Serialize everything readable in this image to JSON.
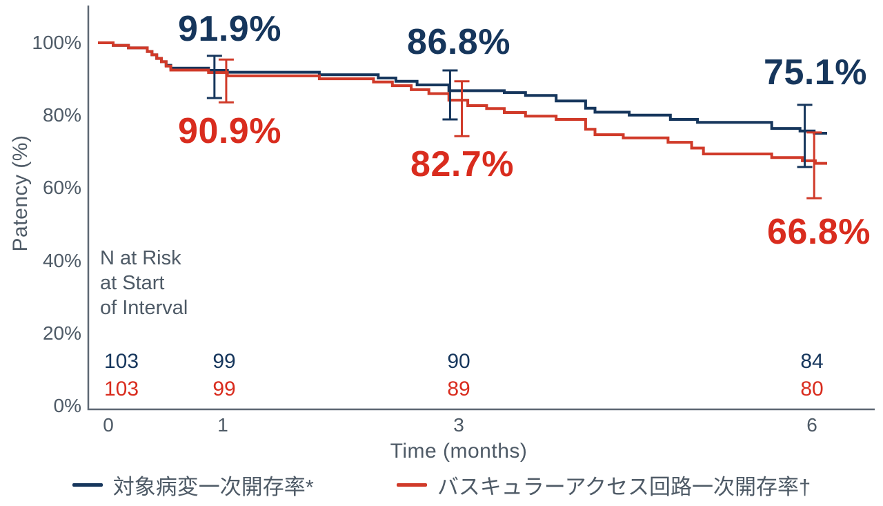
{
  "colors": {
    "navy": "#16365c",
    "red": "#d92c1e",
    "red_line": "#d03a29",
    "gray_text": "#4e5a66",
    "axis_line": "#5d6773"
  },
  "chart_data": {
    "type": "line",
    "subtype": "kaplan-meier-step-curve",
    "title": "",
    "xlabel": "Time (months)",
    "ylabel": "Patency (%)",
    "xlim": [
      0,
      6.2
    ],
    "ylim": [
      0,
      100
    ],
    "grid": false,
    "legend_position": "bottom-center",
    "xticks": [
      {
        "label": "0",
        "month": 0
      },
      {
        "label": "1",
        "month": 1
      },
      {
        "label": "3",
        "month": 3
      },
      {
        "label": "6",
        "month": 6
      }
    ],
    "yticks": [
      {
        "label": "100%",
        "pct": 100
      },
      {
        "label": "80%",
        "pct": 80
      },
      {
        "label": "60%",
        "pct": 60
      },
      {
        "label": "40%",
        "pct": 40
      },
      {
        "label": "20%",
        "pct": 20
      },
      {
        "label": "0%",
        "pct": 0
      }
    ],
    "series": [
      {
        "name": "対象病変一次開存率*",
        "color_key": "navy",
        "steps": [
          [
            0,
            100
          ],
          [
            0.07,
            99.3
          ],
          [
            0.2,
            98.6
          ],
          [
            0.36,
            97.6
          ],
          [
            0.4,
            96.7
          ],
          [
            0.44,
            95.7
          ],
          [
            0.48,
            94.8
          ],
          [
            0.52,
            93.8
          ],
          [
            0.56,
            93.0
          ],
          [
            0.88,
            92.4
          ],
          [
            1.04,
            91.9
          ],
          [
            1.82,
            91.2
          ],
          [
            2.32,
            90.3
          ],
          [
            2.47,
            89.4
          ],
          [
            2.65,
            88.4
          ],
          [
            2.92,
            86.8
          ],
          [
            3.39,
            86.3
          ],
          [
            3.57,
            85.5
          ],
          [
            3.83,
            84.0
          ],
          [
            4.08,
            82.0
          ],
          [
            4.16,
            80.9
          ],
          [
            4.45,
            80.1
          ],
          [
            4.8,
            78.9
          ],
          [
            5.03,
            78.1
          ],
          [
            5.66,
            76.4
          ],
          [
            5.9,
            75.7
          ],
          [
            6.02,
            75.1
          ],
          [
            6.13,
            75.1
          ]
        ],
        "error_bars": [
          {
            "x": 0.93,
            "lo": 84.8,
            "hi": 96.4
          },
          {
            "x": 2.93,
            "lo": 78.9,
            "hi": 92.4
          },
          {
            "x": 5.94,
            "lo": 65.8,
            "hi": 82.9
          }
        ],
        "labels": [
          {
            "text": "91.9%",
            "at_month": 1
          },
          {
            "text": "86.8%",
            "at_month": 3
          },
          {
            "text": "75.1%",
            "at_month": 6
          }
        ]
      },
      {
        "name": "バスキュラーアクセス回路一次開存率†",
        "color_key": "red_line",
        "steps": [
          [
            0,
            100
          ],
          [
            0.07,
            99.3
          ],
          [
            0.2,
            98.6
          ],
          [
            0.36,
            97.6
          ],
          [
            0.4,
            96.7
          ],
          [
            0.44,
            95.7
          ],
          [
            0.48,
            94.8
          ],
          [
            0.52,
            93.6
          ],
          [
            0.56,
            92.5
          ],
          [
            0.88,
            91.8
          ],
          [
            1.04,
            90.9
          ],
          [
            1.82,
            90.1
          ],
          [
            2.28,
            89.2
          ],
          [
            2.44,
            88.2
          ],
          [
            2.6,
            87.1
          ],
          [
            2.75,
            86.0
          ],
          [
            2.92,
            84.2
          ],
          [
            3.08,
            82.7
          ],
          [
            3.24,
            81.9
          ],
          [
            3.39,
            80.8
          ],
          [
            3.57,
            79.8
          ],
          [
            3.83,
            78.9
          ],
          [
            4.08,
            76.2
          ],
          [
            4.16,
            74.7
          ],
          [
            4.4,
            73.8
          ],
          [
            4.78,
            72.6
          ],
          [
            4.98,
            71.0
          ],
          [
            5.08,
            69.4
          ],
          [
            5.66,
            68.4
          ],
          [
            5.92,
            67.5
          ],
          [
            6.03,
            66.8
          ],
          [
            6.13,
            66.8
          ]
        ],
        "error_bars": [
          {
            "x": 1.03,
            "lo": 83.6,
            "hi": 95.4
          },
          {
            "x": 3.03,
            "lo": 74.3,
            "hi": 89.4
          },
          {
            "x": 6.02,
            "lo": 57.2,
            "hi": 75.3
          }
        ],
        "labels": [
          {
            "text": "90.9%",
            "at_month": 1
          },
          {
            "text": "82.7%",
            "at_month": 3
          },
          {
            "text": "66.8%",
            "at_month": 6
          }
        ]
      }
    ],
    "n_at_risk": {
      "heading_lines": [
        "N at Risk",
        "at Start",
        "of Interval"
      ],
      "rows": [
        {
          "series": "対象病変一次開存率",
          "values": [
            "103",
            "99",
            "90",
            "84"
          ]
        },
        {
          "series": "バスキュラーアクセス回路一次開存率",
          "values": [
            "103",
            "99",
            "89",
            "80"
          ]
        }
      ]
    }
  }
}
